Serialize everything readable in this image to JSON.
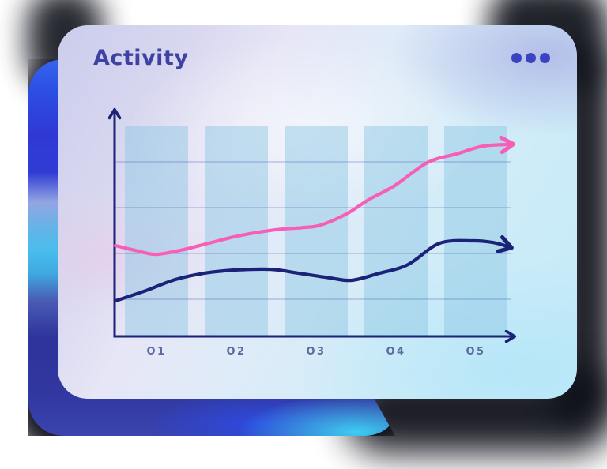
{
  "card": {
    "title": "Activity",
    "menu_icon": "ellipsis-horizontal-icon"
  },
  "chart_data": {
    "type": "line",
    "title": "Activity",
    "categories": [
      "O1",
      "O2",
      "O3",
      "O4",
      "O5"
    ],
    "series": [
      {
        "name": "upper-pink-line",
        "color": "#f65fb5",
        "has_end_arrow": true,
        "values": [
          37,
          45,
          49,
          67,
          83
        ],
        "curve": [
          [
            0.002,
            40.5
          ],
          [
            0.055,
            38.2
          ],
          [
            0.104,
            36.6
          ],
          [
            0.17,
            38.6
          ],
          [
            0.235,
            41.5
          ],
          [
            0.31,
            44.8
          ],
          [
            0.402,
            47.5
          ],
          [
            0.47,
            48.5
          ],
          [
            0.516,
            49.6
          ],
          [
            0.58,
            54.5
          ],
          [
            0.637,
            61.0
          ],
          [
            0.7,
            67.0
          ],
          [
            0.784,
            77.5
          ],
          [
            0.86,
            81.5
          ],
          [
            0.922,
            84.8
          ],
          [
            0.99,
            85.6
          ]
        ]
      },
      {
        "name": "lower-navy-line",
        "color": "#1b2277",
        "has_end_arrow": true,
        "values": [
          20,
          29,
          28,
          32,
          42
        ],
        "curve": [
          [
            0.002,
            15.8
          ],
          [
            0.08,
            20.5
          ],
          [
            0.153,
            25.4
          ],
          [
            0.23,
            28.3
          ],
          [
            0.304,
            29.6
          ],
          [
            0.392,
            29.9
          ],
          [
            0.46,
            28.2
          ],
          [
            0.539,
            26.1
          ],
          [
            0.594,
            25.0
          ],
          [
            0.66,
            28.0
          ],
          [
            0.735,
            32.0
          ],
          [
            0.814,
            41.5
          ],
          [
            0.9,
            42.6
          ],
          [
            0.95,
            41.8
          ],
          [
            0.986,
            40.0
          ]
        ]
      }
    ],
    "ylim": [
      0,
      100
    ],
    "y_tick_labels": "none",
    "grid": {
      "horizontal_lines": 4,
      "vertical_bands": 5
    },
    "legend": "none",
    "axes_have_arrows": true
  },
  "colors": {
    "title": "#3d42a3",
    "menu_dots": "#3c43c0",
    "tick_label": "#5c6b9f",
    "axis": "#1b2277",
    "gridline": "rgba(59,82,165,0.42)",
    "band_fill": "rgba(143,199,228,0.48)",
    "card_accents": [
      "#cbcdec",
      "#e6e6f6",
      "#c3eaf8"
    ],
    "back_card_accents": [
      "#2c4fe4",
      "#48bdec",
      "#2e339b",
      "#3ecdf2"
    ]
  }
}
